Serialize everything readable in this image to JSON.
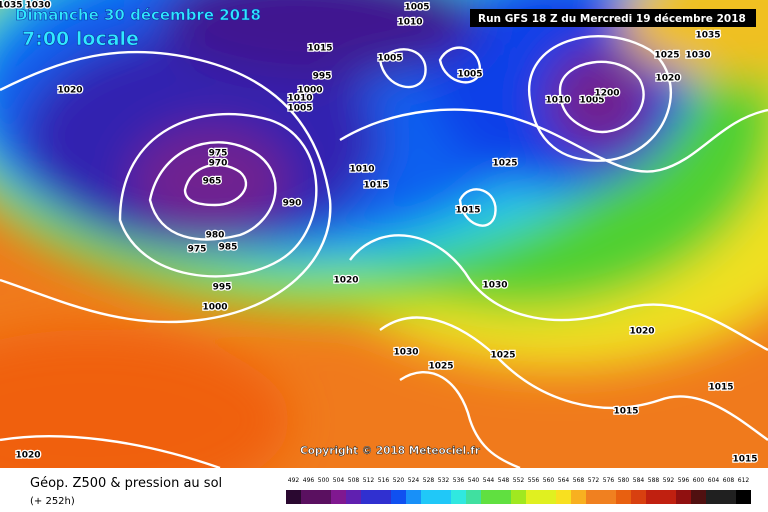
{
  "header": {
    "date": "Dimanche 30 décembre 2018",
    "time": "7:00 locale",
    "run": "Run GFS 18 Z du Mercredi 19 décembre 2018"
  },
  "map": {
    "copyright": "Copyright © 2018 Meteociel.fr",
    "isobar_labels": [
      "1035",
      "1030",
      "1005",
      "1010",
      "1035",
      "1015",
      "995",
      "1005",
      "1005",
      "1025",
      "1030",
      "1020",
      "1010",
      "1005",
      "1200",
      "1000",
      "1005",
      "1010",
      "1020",
      "975",
      "970",
      "965",
      "1010",
      "1015",
      "1025",
      "990",
      "1015",
      "980",
      "985",
      "975",
      "995",
      "1020",
      "1030",
      "1000",
      "1020",
      "1025",
      "1030",
      "1025",
      "1015",
      "1015",
      "1020",
      "1015"
    ]
  },
  "legend": {
    "title": "Géop. Z500 & pression au sol",
    "lead": "(+ 252h)",
    "scale": [
      "492",
      "496",
      "500",
      "504",
      "508",
      "512",
      "516",
      "520",
      "524",
      "528",
      "532",
      "536",
      "540",
      "544",
      "548",
      "552",
      "556",
      "560",
      "564",
      "568",
      "572",
      "576",
      "580",
      "584",
      "588",
      "592",
      "596",
      "600",
      "604",
      "608",
      "612"
    ]
  }
}
